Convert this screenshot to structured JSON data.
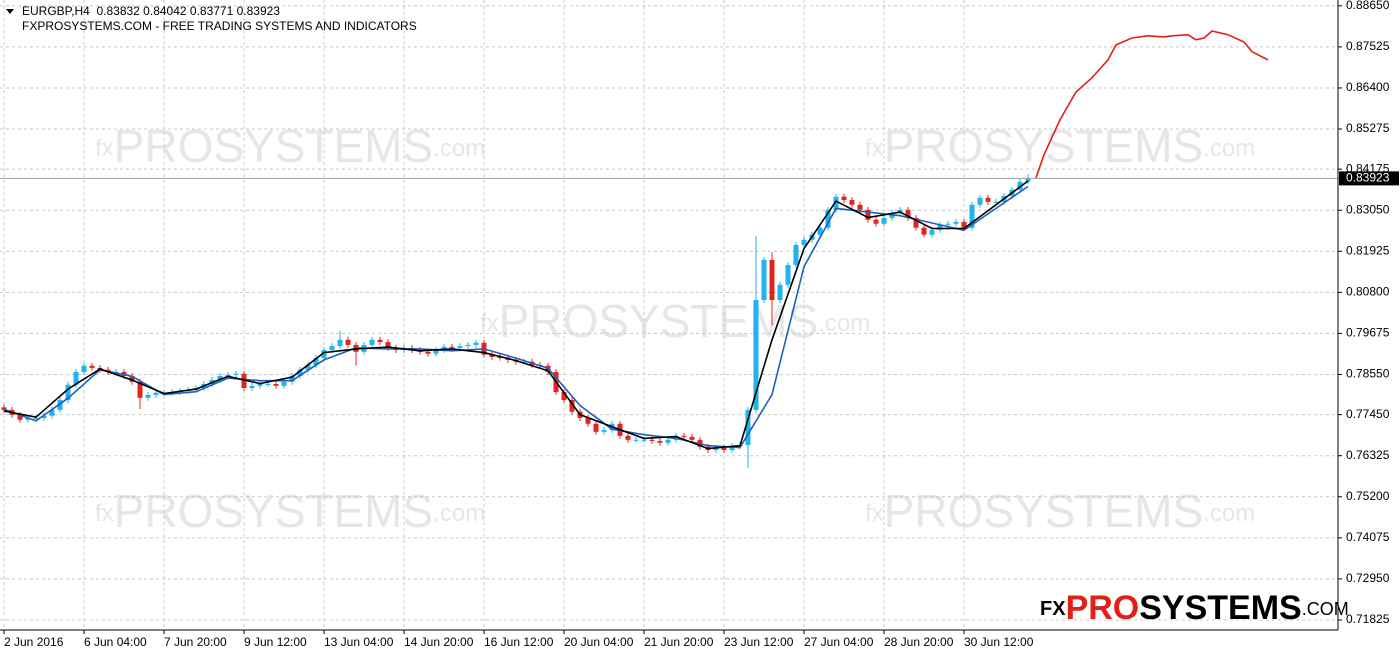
{
  "chart_data": {
    "type": "candlestick",
    "symbol_line": "EURGBP,H4  0.83832 0.84042 0.83771 0.83923",
    "subtitle": "FXPROSYSTEMS.COM - FREE TRADING SYSTEMS AND INDICATORS",
    "watermark": {
      "prefix": "fx",
      "main": "PROSYSTEMS",
      "suffix": ".com"
    },
    "logo": {
      "prefix": "FX",
      "accent": "PRO",
      "main": "SYSTEMS",
      "suffix": ".COM"
    },
    "up_color": "#1fb3ef",
    "down_color": "#e0261c",
    "open": [
      0.7765,
      0.7758,
      0.7744,
      0.7731,
      0.7736,
      0.7736,
      0.7742,
      0.7758,
      0.7785,
      0.7827,
      0.7862,
      0.7879,
      0.7873,
      0.7868,
      0.7862,
      0.7862,
      0.7851,
      0.7835,
      0.7791,
      0.7799,
      0.7805,
      0.7805,
      0.7807,
      0.781,
      0.7813,
      0.7818,
      0.7829,
      0.784,
      0.7851,
      0.7854,
      0.7857,
      0.7818,
      0.7824,
      0.7829,
      0.7829,
      0.7824,
      0.7835,
      0.7851,
      0.7868,
      0.7881,
      0.79,
      0.7922,
      0.7933,
      0.795,
      0.7936,
      0.7917,
      0.7936,
      0.795,
      0.7944,
      0.7928,
      0.7922,
      0.7928,
      0.7922,
      0.7917,
      0.7912,
      0.7922,
      0.7931,
      0.7928,
      0.7933,
      0.7936,
      0.7942,
      0.7909,
      0.7903,
      0.7901,
      0.7895,
      0.789,
      0.789,
      0.7881,
      0.7879,
      0.7862,
      0.7807,
      0.7785,
      0.7753,
      0.7736,
      0.772,
      0.7698,
      0.7703,
      0.772,
      0.7687,
      0.7676,
      0.7676,
      0.7676,
      0.7673,
      0.7668,
      0.7676,
      0.7687,
      0.7684,
      0.7676,
      0.7657,
      0.7648,
      0.7654,
      0.7648,
      0.7659,
      0.7662,
      0.7758,
      0.8059,
      0.8169,
      0.8059,
      0.8101,
      0.8155,
      0.821,
      0.8224,
      0.8238,
      0.8257,
      0.8306,
      0.8342,
      0.8333,
      0.832,
      0.8306,
      0.8279,
      0.8268,
      0.8284,
      0.8298,
      0.8306,
      0.8284,
      0.8257,
      0.8238,
      0.8251,
      0.8265,
      0.8268,
      0.8273,
      0.8257,
      0.832,
      0.8339,
      0.8328,
      0.8328,
      0.8344,
      0.8361,
      0.8383
    ],
    "high": [
      0.7773,
      0.7766,
      0.7752,
      0.7744,
      0.7744,
      0.775,
      0.7766,
      0.7793,
      0.7835,
      0.787,
      0.7887,
      0.7887,
      0.7881,
      0.7876,
      0.787,
      0.787,
      0.7859,
      0.7843,
      0.7807,
      0.7813,
      0.7813,
      0.7815,
      0.7818,
      0.7821,
      0.7826,
      0.7837,
      0.7848,
      0.7859,
      0.7862,
      0.7865,
      0.7865,
      0.7832,
      0.7837,
      0.7837,
      0.7837,
      0.7843,
      0.7859,
      0.7876,
      0.7889,
      0.7908,
      0.793,
      0.7941,
      0.7975,
      0.7958,
      0.7944,
      0.7944,
      0.7958,
      0.7958,
      0.7952,
      0.7936,
      0.7936,
      0.7936,
      0.793,
      0.7925,
      0.793,
      0.7939,
      0.7939,
      0.7941,
      0.7944,
      0.795,
      0.795,
      0.7917,
      0.7911,
      0.7909,
      0.7903,
      0.7898,
      0.7898,
      0.7889,
      0.7887,
      0.787,
      0.7815,
      0.7793,
      0.7761,
      0.7744,
      0.7728,
      0.7711,
      0.7728,
      0.7728,
      0.7695,
      0.7684,
      0.7684,
      0.7684,
      0.7681,
      0.7684,
      0.7695,
      0.7695,
      0.7692,
      0.7684,
      0.7665,
      0.7662,
      0.7662,
      0.7667,
      0.767,
      0.7766,
      0.8235,
      0.8177,
      0.819,
      0.8109,
      0.8163,
      0.8218,
      0.8232,
      0.8246,
      0.8265,
      0.8314,
      0.835,
      0.835,
      0.8341,
      0.8328,
      0.8314,
      0.8287,
      0.8292,
      0.8306,
      0.8314,
      0.8314,
      0.8292,
      0.8265,
      0.8259,
      0.8273,
      0.8276,
      0.8281,
      0.8281,
      0.8328,
      0.8347,
      0.8347,
      0.8336,
      0.8352,
      0.8369,
      0.8391,
      0.8404
    ],
    "low": [
      0.775,
      0.7736,
      0.7723,
      0.7723,
      0.7728,
      0.7728,
      0.7734,
      0.775,
      0.7777,
      0.7819,
      0.7854,
      0.7865,
      0.786,
      0.7854,
      0.7854,
      0.7843,
      0.7827,
      0.776,
      0.7783,
      0.7791,
      0.7797,
      0.7797,
      0.7799,
      0.7802,
      0.7805,
      0.781,
      0.7821,
      0.7832,
      0.7843,
      0.7846,
      0.781,
      0.781,
      0.7816,
      0.7821,
      0.7816,
      0.7816,
      0.7827,
      0.7843,
      0.786,
      0.7873,
      0.7892,
      0.7914,
      0.7925,
      0.7928,
      0.788,
      0.7909,
      0.7928,
      0.7936,
      0.792,
      0.7914,
      0.7914,
      0.7914,
      0.7909,
      0.7904,
      0.7904,
      0.7914,
      0.792,
      0.792,
      0.7925,
      0.7928,
      0.7901,
      0.7895,
      0.7893,
      0.7887,
      0.7882,
      0.7882,
      0.7873,
      0.7871,
      0.7854,
      0.7799,
      0.7777,
      0.7745,
      0.7728,
      0.7712,
      0.769,
      0.769,
      0.7695,
      0.7679,
      0.7668,
      0.7668,
      0.7668,
      0.7665,
      0.766,
      0.766,
      0.7668,
      0.7676,
      0.7668,
      0.7649,
      0.764,
      0.764,
      0.764,
      0.764,
      0.7651,
      0.76,
      0.775,
      0.8051,
      0.799,
      0.8051,
      0.8093,
      0.8147,
      0.8202,
      0.8216,
      0.823,
      0.8249,
      0.8298,
      0.8325,
      0.8312,
      0.8298,
      0.8271,
      0.826,
      0.826,
      0.8276,
      0.829,
      0.8276,
      0.8249,
      0.823,
      0.823,
      0.8243,
      0.8257,
      0.826,
      0.8249,
      0.8249,
      0.8312,
      0.832,
      0.832,
      0.832,
      0.8336,
      0.8353,
      0.8377
    ],
    "close": [
      0.7758,
      0.7744,
      0.7731,
      0.7736,
      0.7736,
      0.7742,
      0.7758,
      0.7785,
      0.7827,
      0.7862,
      0.7879,
      0.7873,
      0.7868,
      0.7862,
      0.7862,
      0.7851,
      0.7835,
      0.7791,
      0.7799,
      0.7805,
      0.7805,
      0.7807,
      0.781,
      0.7813,
      0.7818,
      0.7829,
      0.784,
      0.7851,
      0.7854,
      0.7857,
      0.7818,
      0.7824,
      0.7829,
      0.7829,
      0.7824,
      0.7835,
      0.7851,
      0.7868,
      0.7881,
      0.79,
      0.7922,
      0.7933,
      0.795,
      0.7936,
      0.7917,
      0.7936,
      0.795,
      0.7944,
      0.7928,
      0.7922,
      0.7928,
      0.7922,
      0.7917,
      0.7912,
      0.7922,
      0.7931,
      0.7928,
      0.7933,
      0.7936,
      0.7942,
      0.7909,
      0.7903,
      0.7901,
      0.7895,
      0.789,
      0.789,
      0.7881,
      0.7879,
      0.7862,
      0.7807,
      0.7785,
      0.7753,
      0.7736,
      0.772,
      0.7698,
      0.7703,
      0.772,
      0.7687,
      0.7676,
      0.7676,
      0.7676,
      0.7673,
      0.7668,
      0.7676,
      0.7687,
      0.7684,
      0.7676,
      0.7657,
      0.7648,
      0.7654,
      0.7648,
      0.7659,
      0.7662,
      0.7758,
      0.8059,
      0.8169,
      0.8059,
      0.8101,
      0.8155,
      0.821,
      0.8224,
      0.8238,
      0.8257,
      0.8306,
      0.8342,
      0.8333,
      0.832,
      0.8306,
      0.8279,
      0.8268,
      0.8284,
      0.8298,
      0.8306,
      0.8284,
      0.8257,
      0.8238,
      0.8251,
      0.8265,
      0.8268,
      0.8273,
      0.8257,
      0.832,
      0.8339,
      0.8328,
      0.8328,
      0.8344,
      0.8361,
      0.8383,
      0.8392
    ],
    "lines": [
      {
        "color": "#1f5fbf",
        "x": [
          0,
          4,
          8,
          12,
          16,
          20,
          24,
          28,
          32,
          36,
          40,
          44,
          48,
          52,
          56,
          60,
          64,
          68,
          72,
          76,
          80,
          84,
          88,
          92,
          96,
          100,
          104,
          108,
          112,
          116,
          120,
          124,
          128
        ],
        "values": [
          0.776,
          0.7728,
          0.779,
          0.7868,
          0.785,
          0.78,
          0.7808,
          0.7845,
          0.7838,
          0.7838,
          0.7895,
          0.7928,
          0.7925,
          0.7925,
          0.792,
          0.7925,
          0.79,
          0.7872,
          0.777,
          0.7705,
          0.769,
          0.768,
          0.766,
          0.7655,
          0.78,
          0.815,
          0.831,
          0.83,
          0.829,
          0.827,
          0.825,
          0.831,
          0.837
        ]
      },
      {
        "color": "#000000",
        "x": [
          0,
          4,
          8,
          12,
          16,
          20,
          24,
          28,
          32,
          36,
          40,
          44,
          48,
          52,
          56,
          60,
          64,
          68,
          72,
          76,
          80,
          84,
          88,
          92,
          96,
          100,
          104,
          108,
          112,
          116,
          120,
          124,
          128
        ],
        "values": [
          0.7755,
          0.7738,
          0.7815,
          0.787,
          0.784,
          0.7803,
          0.7815,
          0.785,
          0.783,
          0.7848,
          0.7915,
          0.7925,
          0.793,
          0.792,
          0.7925,
          0.7915,
          0.7893,
          0.7865,
          0.7745,
          0.7712,
          0.768,
          0.7685,
          0.7652,
          0.766,
          0.795,
          0.82,
          0.833,
          0.8285,
          0.83,
          0.8255,
          0.8255,
          0.832,
          0.8385
        ]
      },
      {
        "color": "#e0201b",
        "x": [
          129,
          130,
          132,
          134,
          136,
          138,
          139,
          141,
          143,
          145,
          146,
          148,
          149,
          150,
          151,
          153,
          155,
          156,
          158
        ],
        "values": [
          0.8394,
          0.8457,
          0.8553,
          0.8629,
          0.8668,
          0.8717,
          0.8758,
          0.8777,
          0.8783,
          0.878,
          0.8783,
          0.8786,
          0.8772,
          0.8777,
          0.8796,
          0.8786,
          0.8766,
          0.8739,
          0.8717
        ]
      }
    ],
    "price_label": {
      "value": 0.83923,
      "label": "0.83923"
    },
    "xlim": [
      -0.5,
      166.75
    ],
    "ylim": [
      0.7155,
      0.8881
    ],
    "grid": true,
    "xticks": [
      {
        "value": 0,
        "label": "2 Jun 2016"
      },
      {
        "value": 10,
        "label": "6 Jun 04:00"
      },
      {
        "value": 20,
        "label": "7 Jun 20:00"
      },
      {
        "value": 30,
        "label": "9 Jun 12:00"
      },
      {
        "value": 40,
        "label": "13 Jun 04:00"
      },
      {
        "value": 50,
        "label": "14 Jun 20:00"
      },
      {
        "value": 60,
        "label": "16 Jun 12:00"
      },
      {
        "value": 70,
        "label": "20 Jun 04:00"
      },
      {
        "value": 80,
        "label": "21 Jun 20:00"
      },
      {
        "value": 90,
        "label": "23 Jun 12:00"
      },
      {
        "value": 100,
        "label": "27 Jun 04:00"
      },
      {
        "value": 110,
        "label": "28 Jun 20:00"
      },
      {
        "value": 120,
        "label": "30 Jun 12:00"
      }
    ],
    "yticks": [
      {
        "value": 0.8865,
        "label": "0.88650"
      },
      {
        "value": 0.87525,
        "label": "0.87525"
      },
      {
        "value": 0.864,
        "label": "0.86400"
      },
      {
        "value": 0.85275,
        "label": "0.85275"
      },
      {
        "value": 0.84175,
        "label": "0.84175"
      },
      {
        "value": 0.8305,
        "label": "0.83050"
      },
      {
        "value": 0.81925,
        "label": "0.81925"
      },
      {
        "value": 0.808,
        "label": "0.80800"
      },
      {
        "value": 0.79675,
        "label": "0.79675"
      },
      {
        "value": 0.7855,
        "label": "0.78550"
      },
      {
        "value": 0.7745,
        "label": "0.77450"
      },
      {
        "value": 0.76325,
        "label": "0.76325"
      },
      {
        "value": 0.752,
        "label": "0.75200"
      },
      {
        "value": 0.74075,
        "label": "0.74075"
      },
      {
        "value": 0.7295,
        "label": "0.72950"
      },
      {
        "value": 0.71825,
        "label": "0.71825"
      }
    ]
  }
}
